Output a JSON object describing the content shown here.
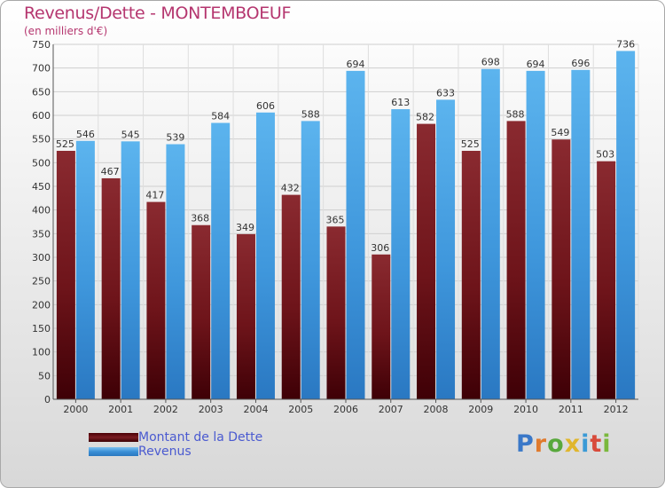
{
  "colors": {
    "debt": "#6b0e14",
    "revenue": "#3a8fd6",
    "title": "#b5366f",
    "legend_text": "#4a5ad0"
  },
  "logo": {
    "text": "Proxiti"
  },
  "chart_data": {
    "type": "bar",
    "title": "Revenus/Dette - MONTEMBOEUF",
    "subtitle": "(en milliers d'€)",
    "categories": [
      "2000",
      "2001",
      "2002",
      "2003",
      "2004",
      "2005",
      "2006",
      "2007",
      "2008",
      "2009",
      "2010",
      "2011",
      "2012"
    ],
    "series": [
      {
        "name": "Montant de la Dette",
        "values": [
          525,
          467,
          417,
          368,
          349,
          432,
          365,
          306,
          582,
          525,
          588,
          549,
          503
        ]
      },
      {
        "name": "Revenus",
        "values": [
          546,
          545,
          539,
          584,
          606,
          588,
          694,
          613,
          633,
          698,
          694,
          696,
          736
        ]
      }
    ],
    "ylim": [
      0,
      750
    ],
    "yticks": [
      0,
      50,
      100,
      150,
      200,
      250,
      300,
      350,
      400,
      450,
      500,
      550,
      600,
      650,
      700,
      750
    ],
    "grid": true,
    "legend_position": "bottom-left"
  }
}
